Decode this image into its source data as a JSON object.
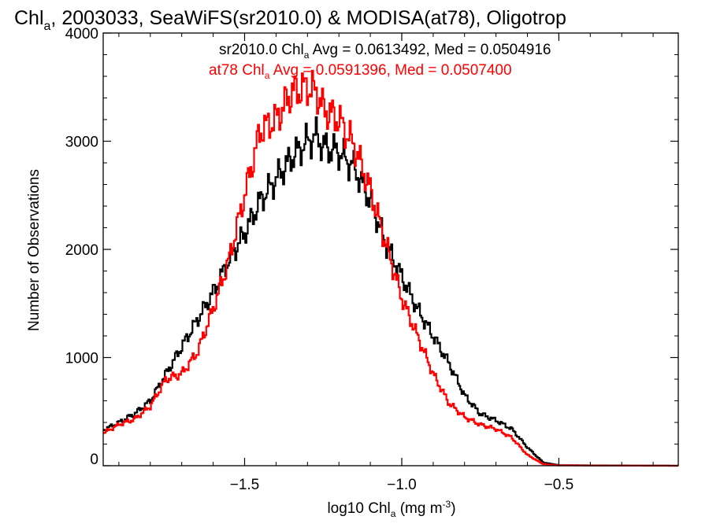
{
  "chart_data": {
    "type": "line",
    "title": {
      "pre": "Chl",
      "sub": "a",
      "post": ", 2003033, SeaWiFS(sr2010.0) & MODISA(at78), Oligotrop"
    },
    "xlabel": {
      "pre": "log10 Chl",
      "sub": "a",
      "mid": " (mg m",
      "sup": "-3",
      "post": ")"
    },
    "ylabel": "Number of Observations",
    "xlim": [
      -1.95,
      -0.12
    ],
    "ylim": [
      0,
      4000
    ],
    "x_ticks": [
      -1.5,
      -1.0,
      -0.5
    ],
    "x_tick_labels": [
      "−1.5",
      "−1.0",
      "−0.5"
    ],
    "y_ticks": [
      0,
      1000,
      2000,
      3000,
      4000
    ],
    "y_tick_labels": [
      "0",
      "1000",
      "2000",
      "3000",
      "4000"
    ],
    "series": [
      {
        "name": "sr2010.0",
        "color": "#000000",
        "legend": {
          "pre": "sr2010.0 Chl",
          "sub": "a",
          "post": " Avg = 0.0613492, Med = 0.0504916"
        },
        "x": [
          -1.95,
          -1.9,
          -1.85,
          -1.8,
          -1.75,
          -1.7,
          -1.65,
          -1.6,
          -1.55,
          -1.5,
          -1.45,
          -1.4,
          -1.35,
          -1.3,
          -1.27,
          -1.25,
          -1.2,
          -1.15,
          -1.1,
          -1.05,
          -1.0,
          -0.95,
          -0.9,
          -0.85,
          -0.8,
          -0.75,
          -0.7,
          -0.65,
          -0.6,
          -0.55,
          -0.5,
          -0.4,
          -0.3,
          -0.2,
          -0.12
        ],
        "y": [
          330,
          400,
          480,
          600,
          850,
          1100,
          1350,
          1600,
          1900,
          2150,
          2450,
          2650,
          2850,
          3000,
          3050,
          2950,
          2900,
          2750,
          2450,
          2050,
          1750,
          1450,
          1200,
          950,
          650,
          480,
          420,
          340,
          170,
          30,
          5,
          3,
          2,
          1,
          0
        ]
      },
      {
        "name": "at78",
        "color": "#ff0000",
        "legend": {
          "pre": "at78 Chl",
          "sub": "a",
          "post": " Avg = 0.0591396, Med = 0.0507400"
        },
        "x": [
          -1.95,
          -1.9,
          -1.85,
          -1.8,
          -1.75,
          -1.7,
          -1.65,
          -1.6,
          -1.55,
          -1.5,
          -1.45,
          -1.4,
          -1.35,
          -1.3,
          -1.27,
          -1.25,
          -1.2,
          -1.15,
          -1.1,
          -1.05,
          -1.0,
          -0.95,
          -0.9,
          -0.85,
          -0.8,
          -0.75,
          -0.7,
          -0.65,
          -0.6,
          -0.55,
          -0.5,
          -0.4,
          -0.3,
          -0.2,
          -0.12
        ],
        "y": [
          300,
          380,
          430,
          550,
          800,
          850,
          1050,
          1450,
          1900,
          2500,
          3100,
          3200,
          3450,
          3500,
          3450,
          3300,
          3200,
          2950,
          2550,
          2050,
          1550,
          1200,
          850,
          580,
          450,
          380,
          340,
          260,
          100,
          15,
          3,
          2,
          1,
          0,
          0
        ]
      }
    ]
  }
}
